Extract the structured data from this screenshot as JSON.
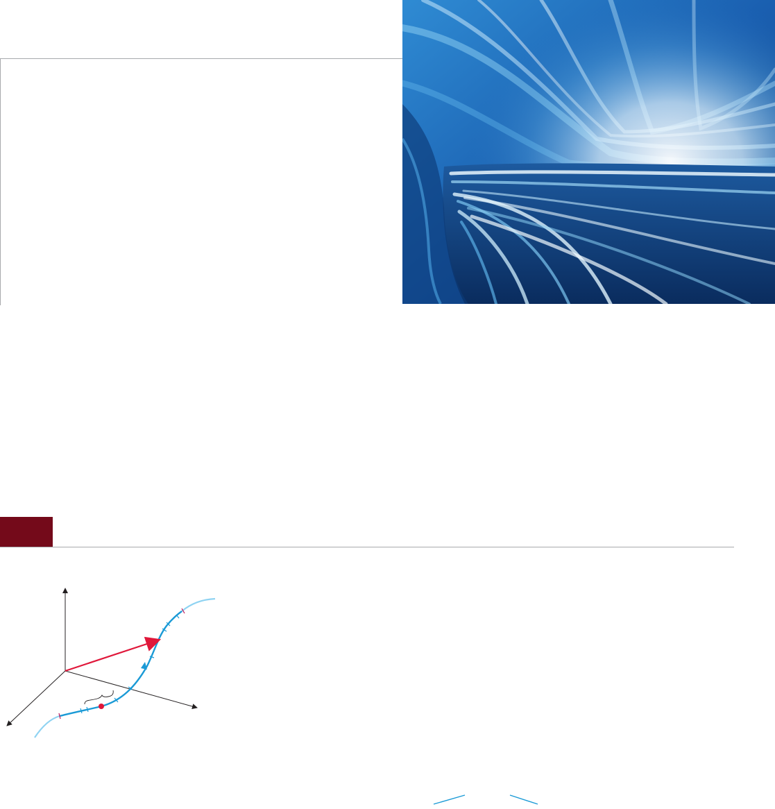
{
  "page": {
    "background": "#ffffff",
    "accent_badge_color": "#740a1a",
    "rule_color": "#a7a9ac"
  },
  "chapter_opener": {
    "photo_subject": "blue-motion-tunnel",
    "photo_colors": [
      "#0b3f86",
      "#1f78c8",
      "#5fb6ea",
      "#e9f4fb"
    ]
  },
  "figure": {
    "curve_color": "#1a9ad6",
    "curve_light_color": "#8fd3f2",
    "vector_color": "#e0173a",
    "point_color": "#e0173a",
    "axis_color": "#231f20"
  }
}
